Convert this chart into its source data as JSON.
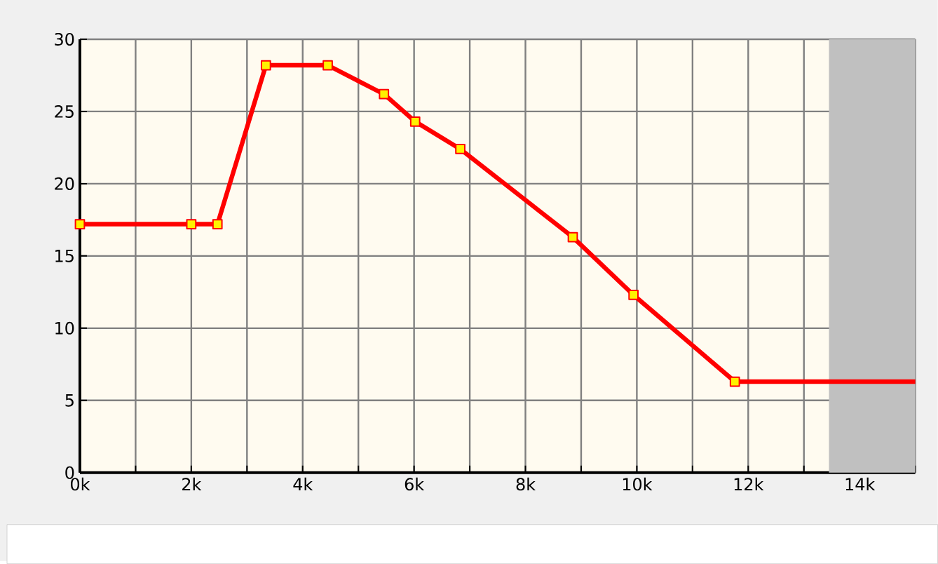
{
  "chart_data": {
    "type": "line",
    "xlim": [
      0,
      15
    ],
    "ylim": [
      0,
      30
    ],
    "xticks": [
      {
        "value": 0,
        "label": "0k"
      },
      {
        "value": 1,
        "label": null
      },
      {
        "value": 2,
        "label": "2k"
      },
      {
        "value": 3,
        "label": null
      },
      {
        "value": 4,
        "label": "4k"
      },
      {
        "value": 5,
        "label": null
      },
      {
        "value": 6,
        "label": "6k"
      },
      {
        "value": 7,
        "label": null
      },
      {
        "value": 8,
        "label": "8k"
      },
      {
        "value": 9,
        "label": null
      },
      {
        "value": 10,
        "label": "10k"
      },
      {
        "value": 11,
        "label": null
      },
      {
        "value": 12,
        "label": "12k"
      },
      {
        "value": 13,
        "label": null
      },
      {
        "value": 14,
        "label": "14k"
      },
      {
        "value": 15,
        "label": null
      }
    ],
    "yticks": [
      0,
      5,
      10,
      15,
      20,
      25,
      30
    ],
    "grid": true,
    "marker": "square",
    "line_style": "solid",
    "bands": [
      {
        "axis": "x",
        "from": 13.45,
        "to": 15,
        "color": "#c0c0c0"
      }
    ],
    "series": [
      {
        "color": "#ff0000",
        "x": [
          0,
          2.0,
          2.47,
          3.34,
          4.45,
          5.46,
          6.02,
          6.83,
          8.85,
          9.94,
          11.76
        ],
        "values": [
          17.2,
          17.2,
          17.2,
          28.2,
          28.2,
          26.2,
          24.3,
          22.4,
          16.3,
          12.3,
          6.3
        ]
      },
      {
        "color": "#ff0000",
        "marker": "none",
        "x": [
          11.76,
          15
        ],
        "values": [
          6.3,
          6.3
        ]
      }
    ]
  }
}
